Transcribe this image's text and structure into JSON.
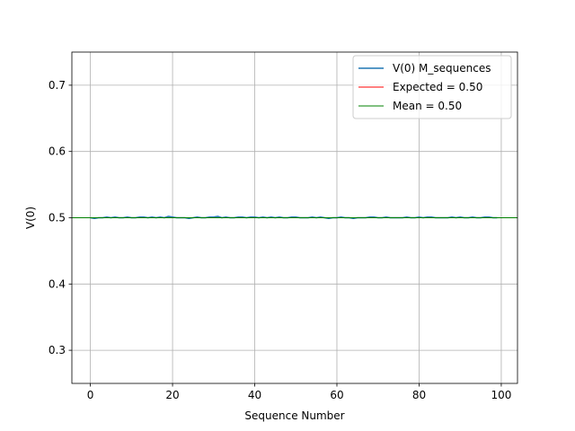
{
  "chart_data": {
    "type": "line",
    "title": "",
    "xlabel": "Sequence Number",
    "ylabel": "V(0)",
    "xlim": [
      -4.5,
      103.95
    ],
    "ylim": [
      0.25,
      0.75
    ],
    "xticks": [
      0,
      20,
      40,
      60,
      80,
      100
    ],
    "yticks": [
      0.3,
      0.4,
      0.5,
      0.6,
      0.7
    ],
    "xtick_labels": [
      "0",
      "20",
      "40",
      "60",
      "80",
      "100"
    ],
    "ytick_labels": [
      "0.3",
      "0.4",
      "0.5",
      "0.6",
      "0.7"
    ],
    "grid": true,
    "legend_position": "top-right",
    "series": [
      {
        "name": "V(0) M_sequences",
        "color": "#1f77b4",
        "x": [
          0,
          1,
          2,
          3,
          4,
          5,
          6,
          7,
          8,
          9,
          10,
          11,
          12,
          13,
          14,
          15,
          16,
          17,
          18,
          19,
          20,
          21,
          22,
          23,
          24,
          25,
          26,
          27,
          28,
          29,
          30,
          31,
          32,
          33,
          34,
          35,
          36,
          37,
          38,
          39,
          40,
          41,
          42,
          43,
          44,
          45,
          46,
          47,
          48,
          49,
          50,
          51,
          52,
          53,
          54,
          55,
          56,
          57,
          58,
          59,
          60,
          61,
          62,
          63,
          64,
          65,
          66,
          67,
          68,
          69,
          70,
          71,
          72,
          73,
          74,
          75,
          76,
          77,
          78,
          79,
          80,
          81,
          82,
          83,
          84,
          85,
          86,
          87,
          88,
          89,
          90,
          91,
          92,
          93,
          94,
          95,
          96,
          97,
          98,
          99
        ],
        "y": [
          0.5,
          0.499,
          0.5,
          0.5,
          0.501,
          0.5,
          0.501,
          0.5,
          0.5,
          0.501,
          0.5,
          0.5,
          0.501,
          0.501,
          0.5,
          0.501,
          0.5,
          0.501,
          0.5,
          0.502,
          0.501,
          0.5,
          0.5,
          0.5,
          0.499,
          0.5,
          0.501,
          0.5,
          0.5,
          0.501,
          0.501,
          0.502,
          0.5,
          0.501,
          0.5,
          0.5,
          0.501,
          0.501,
          0.5,
          0.501,
          0.501,
          0.5,
          0.501,
          0.5,
          0.501,
          0.5,
          0.501,
          0.5,
          0.5,
          0.501,
          0.501,
          0.5,
          0.5,
          0.5,
          0.501,
          0.5,
          0.501,
          0.5,
          0.499,
          0.5,
          0.5,
          0.501,
          0.5,
          0.5,
          0.499,
          0.5,
          0.5,
          0.5,
          0.501,
          0.501,
          0.5,
          0.5,
          0.501,
          0.5,
          0.5,
          0.5,
          0.5,
          0.501,
          0.5,
          0.5,
          0.501,
          0.5,
          0.501,
          0.501,
          0.5,
          0.5,
          0.5,
          0.5,
          0.501,
          0.5,
          0.501,
          0.5,
          0.5,
          0.501,
          0.5,
          0.5,
          0.501,
          0.501,
          0.5,
          0.5
        ]
      },
      {
        "name": "Expected = 0.50",
        "color": "#ff0000",
        "y": 0.5
      },
      {
        "name": "Mean = 0.50",
        "color": "#008000",
        "y": 0.5
      }
    ]
  }
}
